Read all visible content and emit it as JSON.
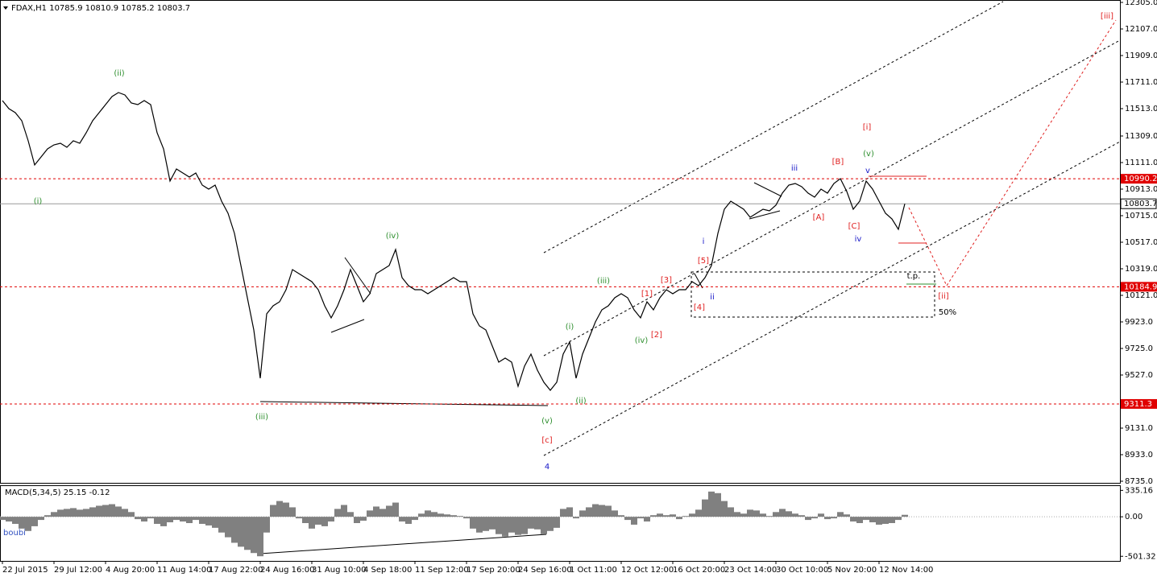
{
  "chart_data": [
    {
      "type": "line",
      "title": "FDAX,H1  10785.9 10810.9 10785.2 10803.7",
      "categories": [
        "22 Jul 2015",
        null,
        null,
        null,
        null,
        null,
        null,
        null,
        "29 Jul 12:00",
        null,
        null,
        null,
        null,
        null,
        null,
        null,
        "4 Aug 20:00",
        null,
        null,
        null,
        null,
        null,
        null,
        null,
        "11 Aug 14:00",
        null,
        null,
        null,
        null,
        null,
        null,
        null,
        "17 Aug 22:00",
        null,
        null,
        null,
        null,
        null,
        null,
        null,
        "24 Aug 16:00",
        null,
        null,
        null,
        null,
        null,
        null,
        null,
        "31 Aug 10:00",
        null,
        null,
        null,
        null,
        null,
        null,
        null,
        "4 Sep 18:00",
        null,
        null,
        null,
        null,
        null,
        null,
        null,
        "11 Sep 12:00",
        null,
        null,
        null,
        null,
        null,
        null,
        null,
        "17 Sep 20:00",
        null,
        null,
        null,
        null,
        null,
        null,
        null,
        "24 Sep 16:00",
        null,
        null,
        null,
        null,
        null,
        null,
        null,
        "1 Oct 11:00",
        null,
        null,
        null,
        null,
        null,
        null,
        null,
        "12 Oct 12:00",
        null,
        null,
        null,
        null,
        null,
        null,
        null,
        "16 Oct 20:00",
        null,
        null,
        null,
        null,
        null,
        null,
        null,
        "23 Oct 14:00",
        null,
        null,
        null,
        null,
        null,
        null,
        null,
        "30 Oct 10:00",
        null,
        null,
        null,
        null,
        null,
        null,
        null,
        "5 Nov 20:00",
        null,
        null,
        null,
        null,
        null,
        null,
        null,
        "12 Nov 14:00",
        null,
        null,
        null,
        null
      ],
      "values": [
        11573,
        11513,
        11483,
        11423,
        11273,
        11093,
        11153,
        11213,
        11243,
        11255,
        11225,
        11273,
        11255,
        11333,
        11423,
        11483,
        11543,
        11603,
        11633,
        11615,
        11555,
        11543,
        11573,
        11543,
        11333,
        11213,
        10973,
        11063,
        11033,
        11003,
        11033,
        10943,
        10913,
        10943,
        10823,
        10733,
        10583,
        10343,
        10103,
        9863,
        9503,
        9983,
        10043,
        10073,
        10163,
        10313,
        10283,
        10253,
        10223,
        10163,
        10043,
        9953,
        10043,
        10163,
        10313,
        10193,
        10073,
        10133,
        10283,
        10313,
        10343,
        10463,
        10253,
        10193,
        10163,
        10163,
        10133,
        10163,
        10193,
        10223,
        10253,
        10223,
        10223,
        9983,
        9893,
        9863,
        9743,
        9623,
        9653,
        9623,
        9443,
        9593,
        9683,
        9563,
        9473,
        9413,
        9473,
        9683,
        9773,
        9503,
        9683,
        9803,
        9923,
        10013,
        10043,
        10103,
        10133,
        10103,
        10013,
        9953,
        10073,
        10013,
        10103,
        10163,
        10133,
        10163,
        10163,
        10223,
        10193,
        10253,
        10343,
        10583,
        10763,
        10823,
        10793,
        10763,
        10703,
        10733,
        10763,
        10751,
        10793,
        10883,
        10943,
        10955,
        10931,
        10883,
        10853,
        10913,
        10883,
        10955,
        10991,
        10895,
        10763,
        10823,
        10973,
        10913,
        10823,
        10733,
        10691,
        10613,
        10803.7
      ],
      "color": "#000000",
      "ylim": [
        8723,
        12323
      ],
      "yticks": [
        {
          "value": 12305,
          "label": "12305.0"
        },
        {
          "value": 12107,
          "label": "12107.0"
        },
        {
          "value": 11909,
          "label": "11909.0"
        },
        {
          "value": 11711,
          "label": "11711.0"
        },
        {
          "value": 11513,
          "label": "11513.0"
        },
        {
          "value": 11309,
          "label": "11309.0"
        },
        {
          "value": 11111,
          "label": "11111.0"
        },
        {
          "value": 10913,
          "label": "10913.0"
        },
        {
          "value": 10715,
          "label": "10715.0"
        },
        {
          "value": 10517,
          "label": "10517.0"
        },
        {
          "value": 10319,
          "label": "10319.0"
        },
        {
          "value": 10121,
          "label": "10121.0"
        },
        {
          "value": 9923,
          "label": "9923.0"
        },
        {
          "value": 9725,
          "label": "9725.0"
        },
        {
          "value": 9527,
          "label": "9527.0"
        },
        {
          "value": 9131,
          "label": "9131.0"
        },
        {
          "value": 8933,
          "label": "8933.0"
        },
        {
          "value": 8735,
          "label": "8735.0"
        }
      ],
      "levels": [
        10990.2,
        10184.9,
        9311.3
      ],
      "level_color": "#e00000",
      "last_price": 10803.7,
      "annotations": [
        {
          "text": "(ii)",
          "color": "#2f8f2f"
        },
        {
          "text": "(i)",
          "color": "#2f8f2f"
        },
        {
          "text": "(iv)",
          "color": "#2f8f2f"
        },
        {
          "text": "(iii)",
          "color": "#2f8f2f"
        },
        {
          "text": "(v)",
          "color": "#2f8f2f"
        },
        {
          "text": "[c]",
          "color": "#e02020"
        },
        {
          "text": "4",
          "color": "#1818c8"
        },
        {
          "text": "(ii)",
          "color": "#2f8f2f"
        },
        {
          "text": "(i)",
          "color": "#2f8f2f"
        },
        {
          "text": "(iii)",
          "color": "#2f8f2f"
        },
        {
          "text": "(iv)",
          "color": "#2f8f2f"
        },
        {
          "text": "[1]",
          "color": "#e02020"
        },
        {
          "text": "[2]",
          "color": "#e02020"
        },
        {
          "text": "[3]",
          "color": "#e02020"
        },
        {
          "text": "[4]",
          "color": "#e02020"
        },
        {
          "text": "[5]",
          "color": "#e02020"
        },
        {
          "text": "i",
          "color": "#1818c8"
        },
        {
          "text": "ii",
          "color": "#1818c8"
        },
        {
          "text": "iii",
          "color": "#1818c8"
        },
        {
          "text": "[A]",
          "color": "#e02020"
        },
        {
          "text": "[B]",
          "color": "#e02020"
        },
        {
          "text": "[C]",
          "color": "#e02020"
        },
        {
          "text": "iv",
          "color": "#1818c8"
        },
        {
          "text": "(v)",
          "color": "#2f8f2f"
        },
        {
          "text": "v",
          "color": "#1818c8"
        },
        {
          "text": "[i]",
          "color": "#e02020"
        },
        {
          "text": "[ii]",
          "color": "#e02020"
        },
        {
          "text": "[iii]",
          "color": "#e02020"
        },
        {
          "text": "t.p.",
          "color": "#000000"
        },
        {
          "text": "50%",
          "color": "#000000"
        }
      ]
    },
    {
      "type": "bar",
      "title": "MACD(5,34,5) 25.15 -0.12",
      "values": [
        -40,
        -60,
        -90,
        -150,
        -180,
        -120,
        -40,
        20,
        60,
        90,
        100,
        110,
        90,
        100,
        120,
        140,
        150,
        160,
        130,
        100,
        60,
        -30,
        -60,
        -20,
        -90,
        -120,
        -70,
        -40,
        -60,
        -80,
        -40,
        -90,
        -110,
        -140,
        -200,
        -260,
        -330,
        -380,
        -420,
        -460,
        -501,
        -200,
        150,
        200,
        180,
        120,
        -20,
        -80,
        -150,
        -100,
        -120,
        -60,
        100,
        150,
        60,
        -80,
        -50,
        80,
        130,
        100,
        140,
        180,
        -60,
        -90,
        -40,
        40,
        80,
        60,
        40,
        30,
        20,
        10,
        -20,
        -150,
        -200,
        -180,
        -160,
        -220,
        -250,
        -200,
        -230,
        -220,
        -150,
        -160,
        -220,
        -180,
        -140,
        100,
        120,
        -20,
        80,
        120,
        160,
        150,
        140,
        80,
        20,
        -40,
        -100,
        -20,
        -60,
        20,
        40,
        20,
        30,
        -30,
        10,
        40,
        90,
        220,
        320,
        300,
        200,
        120,
        60,
        40,
        90,
        80,
        40,
        10,
        60,
        100,
        70,
        40,
        20,
        -40,
        -20,
        40,
        -30,
        -20,
        60,
        30,
        -60,
        -80,
        -40,
        -70,
        -100,
        -90,
        -80,
        -40,
        25
      ],
      "color": "#808080",
      "ylim": [
        -560,
        400
      ],
      "yticks": [
        335.16,
        {
          "value": 0,
          "label": "0.00"
        },
        -501.32
      ],
      "annotations": [
        {
          "text": "boubi",
          "color": "#3050c0"
        }
      ]
    }
  ]
}
